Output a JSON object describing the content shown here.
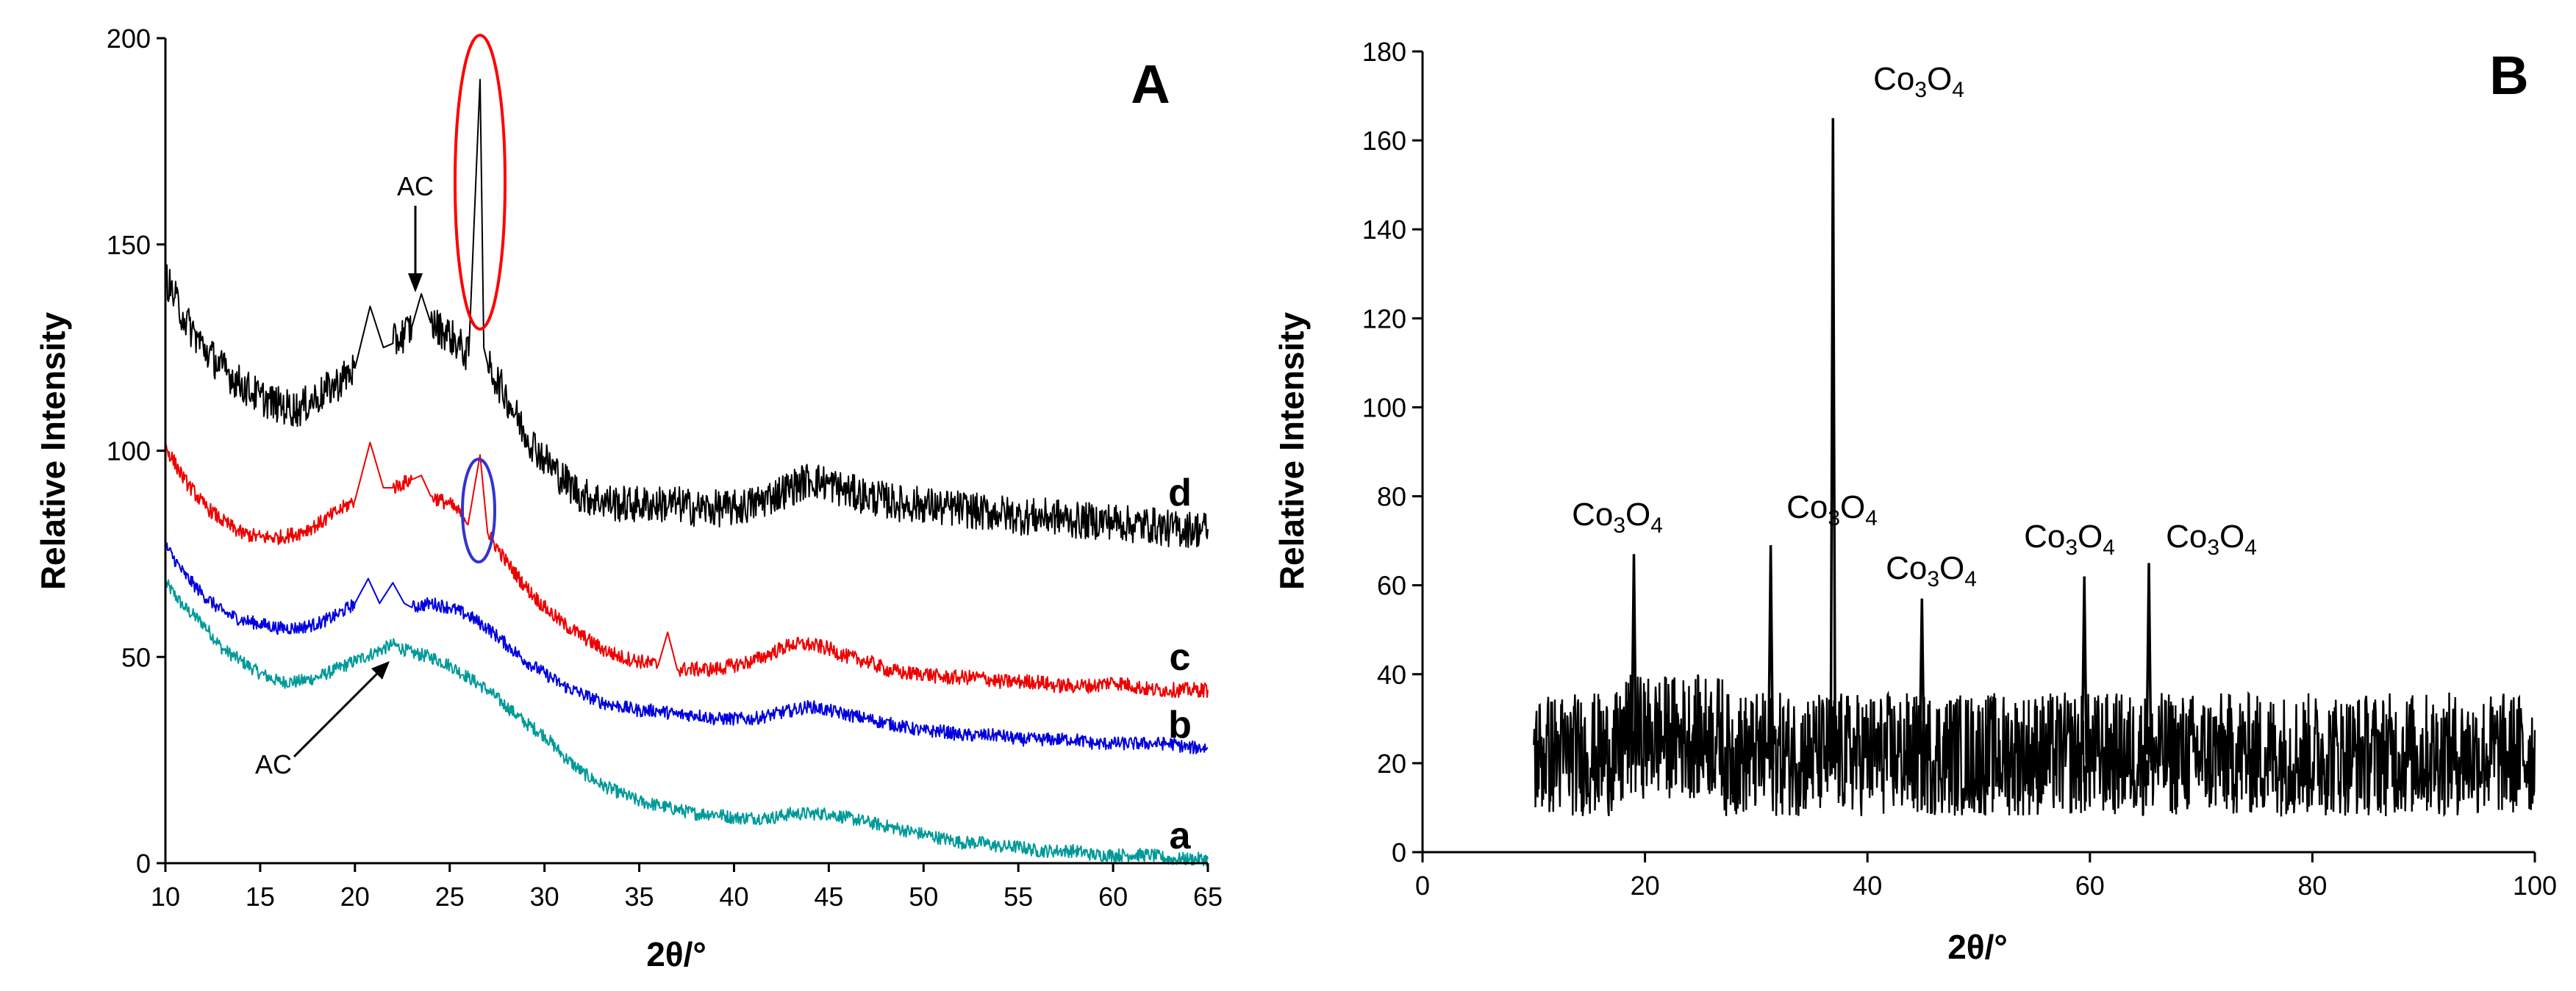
{
  "chart_data": [
    {
      "panel": "A",
      "type": "line",
      "xlabel": "2θ/°",
      "ylabel": "Relative Intensity",
      "xlim": [
        10,
        65
      ],
      "ylim": [
        0,
        200
      ],
      "xticks": [
        "10",
        "15",
        "20",
        "25",
        "30",
        "35",
        "40",
        "45",
        "50",
        "55",
        "60",
        "65"
      ],
      "yticks": [
        "0",
        "50",
        "100",
        "150",
        "200"
      ],
      "colors": {
        "a": "#009999",
        "b": "#0000dd",
        "c": "#ee0000",
        "d": "#000000",
        "red_ellipse": "#ff0000",
        "blue_ellipse": "#3333cc"
      },
      "series": [
        {
          "name": "a",
          "color": "#009999",
          "points": [
            [
              10,
              68
            ],
            [
              11,
              62
            ],
            [
              12,
              58
            ],
            [
              13,
              52
            ],
            [
              14,
              49
            ],
            [
              15,
              46
            ],
            [
              16,
              44
            ],
            [
              17,
              44
            ],
            [
              18,
              45
            ],
            [
              19,
              47
            ],
            [
              20,
              49
            ],
            [
              21,
              51
            ],
            [
              22,
              53
            ],
            [
              23,
              51
            ],
            [
              24,
              50
            ],
            [
              25,
              48
            ],
            [
              26,
              45
            ],
            [
              27,
              42
            ],
            [
              28,
              38
            ],
            [
              29,
              34
            ],
            [
              30,
              31
            ],
            [
              31,
              26
            ],
            [
              32,
              22
            ],
            [
              33,
              19
            ],
            [
              34,
              17
            ],
            [
              35,
              15
            ],
            [
              36,
              14
            ],
            [
              37,
              13
            ],
            [
              38,
              12
            ],
            [
              39,
              12
            ],
            [
              40,
              11
            ],
            [
              41,
              11
            ],
            [
              42,
              11
            ],
            [
              43,
              12
            ],
            [
              44,
              12
            ],
            [
              45,
              12
            ],
            [
              46,
              11
            ],
            [
              47,
              10
            ],
            [
              48,
              9
            ],
            [
              49,
              8
            ],
            [
              50,
              7
            ],
            [
              51,
              6
            ],
            [
              52,
              5
            ],
            [
              53,
              5
            ],
            [
              54,
              4
            ],
            [
              55,
              4
            ],
            [
              56,
              3
            ],
            [
              57,
              3
            ],
            [
              58,
              3
            ],
            [
              59,
              2
            ],
            [
              60,
              2
            ],
            [
              61,
              2
            ],
            [
              62,
              2
            ],
            [
              63,
              1
            ],
            [
              64,
              1
            ],
            [
              65,
              1
            ]
          ]
        },
        {
          "name": "b",
          "color": "#0000dd",
          "points": [
            [
              10,
              77
            ],
            [
              11,
              70
            ],
            [
              12,
              65
            ],
            [
              13,
              61
            ],
            [
              14,
              59
            ],
            [
              15,
              58
            ],
            [
              16,
              57
            ],
            [
              17,
              57
            ],
            [
              18,
              58
            ],
            [
              19,
              60
            ],
            [
              20,
              63
            ],
            [
              20.7,
              69
            ],
            [
              21.3,
              63
            ],
            [
              22,
              68
            ],
            [
              22.6,
              63
            ],
            [
              23,
              62
            ],
            [
              24,
              63
            ],
            [
              25,
              62
            ],
            [
              26,
              60
            ],
            [
              27,
              57
            ],
            [
              28,
              53
            ],
            [
              29,
              49
            ],
            [
              30,
              46
            ],
            [
              31,
              43
            ],
            [
              32,
              41
            ],
            [
              33,
              39
            ],
            [
              34,
              38
            ],
            [
              35,
              37
            ],
            [
              36,
              37
            ],
            [
              37,
              36
            ],
            [
              38,
              36
            ],
            [
              39,
              35
            ],
            [
              40,
              35
            ],
            [
              41,
              35
            ],
            [
              42,
              36
            ],
            [
              43,
              37
            ],
            [
              44,
              38
            ],
            [
              45,
              37
            ],
            [
              46,
              36
            ],
            [
              47,
              35
            ],
            [
              48,
              34
            ],
            [
              49,
              33
            ],
            [
              50,
              32
            ],
            [
              51,
              32
            ],
            [
              52,
              31
            ],
            [
              53,
              31
            ],
            [
              54,
              31
            ],
            [
              55,
              30
            ],
            [
              56,
              30
            ],
            [
              57,
              30
            ],
            [
              58,
              30
            ],
            [
              59,
              29
            ],
            [
              60,
              29
            ],
            [
              61,
              29
            ],
            [
              62,
              29
            ],
            [
              63,
              29
            ],
            [
              64,
              28
            ],
            [
              65,
              28
            ]
          ]
        },
        {
          "name": "c",
          "color": "#ee0000",
          "points": [
            [
              10,
              101
            ],
            [
              11,
              93
            ],
            [
              12,
              87
            ],
            [
              13,
              83
            ],
            [
              14,
              80
            ],
            [
              15,
              79
            ],
            [
              16,
              79
            ],
            [
              17,
              80
            ],
            [
              18,
              82
            ],
            [
              19,
              85
            ],
            [
              20,
              88
            ],
            [
              20.8,
              102
            ],
            [
              21.5,
              91
            ],
            [
              22,
              91
            ],
            [
              23,
              93
            ],
            [
              23.5,
              94
            ],
            [
              24,
              89
            ],
            [
              25,
              87
            ],
            [
              26,
              83
            ],
            [
              26.6,
              99
            ],
            [
              27,
              80
            ],
            [
              28,
              73
            ],
            [
              29,
              67
            ],
            [
              30,
              62
            ],
            [
              31,
              58
            ],
            [
              32,
              55
            ],
            [
              33,
              52
            ],
            [
              34,
              50
            ],
            [
              35,
              49
            ],
            [
              36,
              48
            ],
            [
              36.5,
              56
            ],
            [
              37,
              47
            ],
            [
              38,
              47
            ],
            [
              39,
              47
            ],
            [
              40,
              48
            ],
            [
              41,
              49
            ],
            [
              42,
              51
            ],
            [
              43,
              53
            ],
            [
              44,
              53
            ],
            [
              45,
              52
            ],
            [
              46,
              50
            ],
            [
              47,
              49
            ],
            [
              48,
              47
            ],
            [
              49,
              46
            ],
            [
              50,
              46
            ],
            [
              51,
              45
            ],
            [
              52,
              45
            ],
            [
              53,
              45
            ],
            [
              54,
              44
            ],
            [
              55,
              44
            ],
            [
              56,
              44
            ],
            [
              57,
              43
            ],
            [
              58,
              43
            ],
            [
              59,
              43
            ],
            [
              60,
              44
            ],
            [
              61,
              43
            ],
            [
              62,
              42
            ],
            [
              63,
              42
            ],
            [
              64,
              42
            ],
            [
              65,
              42
            ]
          ]
        },
        {
          "name": "d",
          "color": "#000000",
          "points": [
            [
              10,
              142
            ],
            [
              11,
              132
            ],
            [
              12,
              125
            ],
            [
              13,
              120
            ],
            [
              14,
              116
            ],
            [
              15,
              113
            ],
            [
              16,
              111
            ],
            [
              17,
              110
            ],
            [
              18,
              113
            ],
            [
              19,
              116
            ],
            [
              20,
              120
            ],
            [
              20.8,
              135
            ],
            [
              21.5,
              125
            ],
            [
              22,
              126
            ],
            [
              23,
              130
            ],
            [
              23.5,
              138
            ],
            [
              24,
              131
            ],
            [
              25,
              128
            ],
            [
              26,
              123
            ],
            [
              26.6,
              190
            ],
            [
              26.8,
              125
            ],
            [
              27,
              121
            ],
            [
              28,
              113
            ],
            [
              29,
              104
            ],
            [
              30,
              98
            ],
            [
              31,
              93
            ],
            [
              32,
              89
            ],
            [
              33,
              88
            ],
            [
              34,
              87
            ],
            [
              35,
              87
            ],
            [
              36,
              87
            ],
            [
              37,
              87
            ],
            [
              38,
              86
            ],
            [
              39,
              86
            ],
            [
              40,
              86
            ],
            [
              41,
              87
            ],
            [
              42,
              89
            ],
            [
              43,
              91
            ],
            [
              44,
              93
            ],
            [
              45,
              92
            ],
            [
              46,
              90
            ],
            [
              47,
              89
            ],
            [
              48,
              88
            ],
            [
              49,
              87
            ],
            [
              50,
              87
            ],
            [
              51,
              86
            ],
            [
              52,
              86
            ],
            [
              53,
              85
            ],
            [
              54,
              85
            ],
            [
              55,
              84
            ],
            [
              56,
              84
            ],
            [
              57,
              84
            ],
            [
              58,
              83
            ],
            [
              59,
              83
            ],
            [
              60,
              83
            ],
            [
              61,
              82
            ],
            [
              62,
              82
            ],
            [
              63,
              81
            ],
            [
              64,
              81
            ],
            [
              65,
              81
            ]
          ]
        }
      ],
      "curve_labels": [
        "a",
        "b",
        "c",
        "d"
      ],
      "annotations": [
        "AC",
        "AC"
      ],
      "panel_label": "A"
    },
    {
      "panel": "B",
      "type": "line",
      "xlabel": "2θ/°",
      "ylabel": "Relative Intensity",
      "xlim": [
        0,
        100
      ],
      "ylim": [
        0,
        180
      ],
      "xticks": [
        "0",
        "20",
        "40",
        "60",
        "80",
        "100"
      ],
      "yticks": [
        "0",
        "20",
        "40",
        "60",
        "80",
        "100",
        "120",
        "140",
        "160",
        "180"
      ],
      "baseline": {
        "x_range": [
          10,
          100
        ],
        "mean": 22,
        "noise_amplitude": 14
      },
      "peaks": [
        {
          "x": 19.0,
          "y": 67
        },
        {
          "x": 31.3,
          "y": 69
        },
        {
          "x": 36.9,
          "y": 165
        },
        {
          "x": 44.9,
          "y": 57
        },
        {
          "x": 59.5,
          "y": 62
        },
        {
          "x": 65.3,
          "y": 65
        }
      ],
      "peak_label_main": "Co",
      "peak_label_sub1": "3",
      "peak_label_mid": "O",
      "peak_label_sub2": "4",
      "panel_label": "B"
    }
  ]
}
